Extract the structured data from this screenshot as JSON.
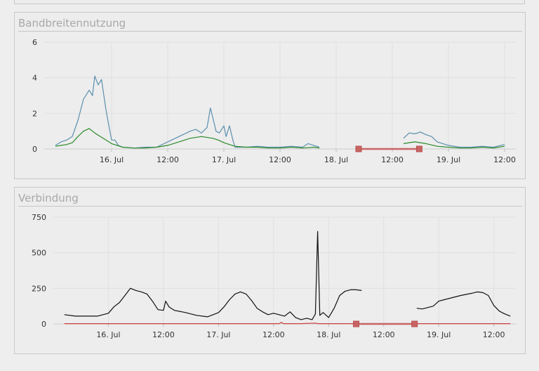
{
  "panels": [
    {
      "title": "Bandbreitennutzung",
      "chart_data": {
        "type": "line",
        "x_ticks": [
          "16. Jul",
          "12:00",
          "17. Jul",
          "12:00",
          "18. Jul",
          "12:00",
          "19. Jul",
          "12:00"
        ],
        "y_ticks": [
          "0",
          "2",
          "4",
          "6"
        ],
        "ylim": [
          0,
          6
        ],
        "grid": true,
        "series": [
          {
            "color": "#5b8fae",
            "segments": [
              [
                [
                  0,
                  0.2
                ],
                [
                  0.5,
                  0.4
                ],
                [
                  1,
                  0.5
                ],
                [
                  1.5,
                  0.7
                ],
                [
                  2,
                  1.6
                ],
                [
                  2.5,
                  2.8
                ],
                [
                  3,
                  3.3
                ],
                [
                  3.3,
                  3.0
                ],
                [
                  3.5,
                  4.1
                ],
                [
                  3.8,
                  3.6
                ],
                [
                  4.1,
                  3.9
                ],
                [
                  4.5,
                  2.2
                ],
                [
                  4.7,
                  1.5
                ],
                [
                  5,
                  0.5
                ],
                [
                  5.3,
                  0.5
                ],
                [
                  5.6,
                  0.2
                ],
                [
                  6,
                  0.1
                ],
                [
                  7,
                  0.05
                ],
                [
                  8,
                  0.1
                ],
                [
                  9,
                  0.1
                ],
                [
                  10,
                  0.4
                ],
                [
                  11,
                  0.7
                ],
                [
                  12,
                  1.0
                ],
                [
                  12.5,
                  1.1
                ],
                [
                  13,
                  0.9
                ],
                [
                  13.5,
                  1.2
                ],
                [
                  13.8,
                  2.3
                ],
                [
                  14,
                  1.8
                ],
                [
                  14.3,
                  1.0
                ],
                [
                  14.6,
                  0.9
                ],
                [
                  15,
                  1.3
                ],
                [
                  15.2,
                  0.7
                ],
                [
                  15.5,
                  1.3
                ],
                [
                  15.8,
                  0.5
                ],
                [
                  16,
                  0.1
                ],
                [
                  17,
                  0.1
                ],
                [
                  18,
                  0.15
                ],
                [
                  19,
                  0.1
                ],
                [
                  20,
                  0.1
                ],
                [
                  21,
                  0.15
                ],
                [
                  22,
                  0.1
                ],
                [
                  22.5,
                  0.3
                ],
                [
                  23,
                  0.2
                ],
                [
                  23.5,
                  0.1
                ]
              ],
              [
                [
                  31,
                  0.6
                ],
                [
                  31.5,
                  0.9
                ],
                [
                  32,
                  0.85
                ],
                [
                  32.5,
                  0.95
                ],
                [
                  33,
                  0.8
                ],
                [
                  33.5,
                  0.7
                ],
                [
                  34,
                  0.4
                ],
                [
                  35,
                  0.2
                ],
                [
                  36,
                  0.1
                ],
                [
                  37,
                  0.1
                ],
                [
                  38,
                  0.15
                ],
                [
                  39,
                  0.1
                ],
                [
                  40,
                  0.25
                ]
              ]
            ]
          },
          {
            "color": "#2a8a2a",
            "segments": [
              [
                [
                  0,
                  0.15
                ],
                [
                  0.5,
                  0.2
                ],
                [
                  1,
                  0.25
                ],
                [
                  1.5,
                  0.35
                ],
                [
                  2,
                  0.7
                ],
                [
                  2.5,
                  1.0
                ],
                [
                  3,
                  1.15
                ],
                [
                  3.5,
                  0.9
                ],
                [
                  4,
                  0.7
                ],
                [
                  4.5,
                  0.5
                ],
                [
                  5,
                  0.3
                ],
                [
                  6,
                  0.1
                ],
                [
                  7,
                  0.05
                ],
                [
                  8,
                  0.05
                ],
                [
                  9,
                  0.1
                ],
                [
                  10,
                  0.2
                ],
                [
                  11,
                  0.4
                ],
                [
                  12,
                  0.6
                ],
                [
                  13,
                  0.7
                ],
                [
                  14,
                  0.6
                ],
                [
                  14.5,
                  0.5
                ],
                [
                  15,
                  0.35
                ],
                [
                  15.5,
                  0.25
                ],
                [
                  16,
                  0.15
                ],
                [
                  17,
                  0.1
                ],
                [
                  18,
                  0.1
                ],
                [
                  19,
                  0.05
                ],
                [
                  20,
                  0.05
                ],
                [
                  21,
                  0.1
                ],
                [
                  22,
                  0.05
                ],
                [
                  23,
                  0.1
                ],
                [
                  23.5,
                  0.05
                ]
              ],
              [
                [
                  31,
                  0.3
                ],
                [
                  31.5,
                  0.35
                ],
                [
                  32,
                  0.4
                ],
                [
                  33,
                  0.3
                ],
                [
                  34,
                  0.15
                ],
                [
                  35,
                  0.1
                ],
                [
                  36,
                  0.05
                ],
                [
                  37,
                  0.05
                ],
                [
                  38,
                  0.1
                ],
                [
                  39,
                  0.05
                ],
                [
                  40,
                  0.15
                ]
              ]
            ]
          }
        ],
        "outages": [
          [
            27,
            32.4
          ]
        ],
        "outage_color": "#c96464"
      }
    },
    {
      "title": "Verbindung",
      "chart_data": {
        "type": "line",
        "x_ticks": [
          "16. Jul",
          "12:00",
          "17. Jul",
          "12:00",
          "18. Jul",
          "12:00",
          "19. Jul",
          "12:00"
        ],
        "y_ticks": [
          "0",
          "250",
          "500",
          "750"
        ],
        "ylim": [
          0,
          750
        ],
        "grid": true,
        "series": [
          {
            "color": "#111111",
            "segments": [
              [
                [
                  0,
                  65
                ],
                [
                  1,
                  55
                ],
                [
                  2,
                  55
                ],
                [
                  3,
                  55
                ],
                [
                  4,
                  75
                ],
                [
                  4.5,
                  120
                ],
                [
                  5,
                  150
                ],
                [
                  5.5,
                  200
                ],
                [
                  6,
                  250
                ],
                [
                  6.5,
                  235
                ],
                [
                  7,
                  225
                ],
                [
                  7.5,
                  210
                ],
                [
                  8,
                  160
                ],
                [
                  8.5,
                  100
                ],
                [
                  9,
                  95
                ],
                [
                  9.2,
                  160
                ],
                [
                  9.5,
                  120
                ],
                [
                  10,
                  95
                ],
                [
                  11,
                  80
                ],
                [
                  12,
                  60
                ],
                [
                  13,
                  50
                ],
                [
                  14,
                  80
                ],
                [
                  14.5,
                  120
                ],
                [
                  15,
                  170
                ],
                [
                  15.5,
                  210
                ],
                [
                  16,
                  225
                ],
                [
                  16.5,
                  210
                ],
                [
                  17,
                  165
                ],
                [
                  17.5,
                  110
                ],
                [
                  18,
                  85
                ],
                [
                  18.5,
                  65
                ],
                [
                  19,
                  75
                ],
                [
                  20,
                  55
                ],
                [
                  20.5,
                  85
                ],
                [
                  21,
                  45
                ],
                [
                  21.5,
                  30
                ],
                [
                  22,
                  40
                ],
                [
                  22.5,
                  30
                ],
                [
                  22.8,
                  70
                ],
                [
                  23,
                  650
                ],
                [
                  23.2,
                  60
                ],
                [
                  23.5,
                  80
                ],
                [
                  24,
                  45
                ],
                [
                  24.5,
                  110
                ],
                [
                  25,
                  200
                ],
                [
                  25.5,
                  230
                ],
                [
                  26,
                  240
                ],
                [
                  26.5,
                  240
                ],
                [
                  27,
                  235
                ]
              ],
              [
                [
                  32,
                  110
                ],
                [
                  32.5,
                  105
                ],
                [
                  33,
                  115
                ],
                [
                  33.5,
                  125
                ],
                [
                  34,
                  160
                ],
                [
                  34.5,
                  170
                ],
                [
                  35,
                  180
                ],
                [
                  36,
                  200
                ],
                [
                  37,
                  215
                ],
                [
                  37.5,
                  225
                ],
                [
                  38,
                  220
                ],
                [
                  38.5,
                  200
                ],
                [
                  39,
                  130
                ],
                [
                  39.5,
                  90
                ],
                [
                  40,
                  70
                ],
                [
                  40.5,
                  55
                ]
              ]
            ]
          },
          {
            "color": "#d04040",
            "segments": [
              [
                [
                  0,
                  2
                ],
                [
                  10,
                  2
                ],
                [
                  19.5,
                  2
                ],
                [
                  19.7,
                  12
                ],
                [
                  19.9,
                  2
                ],
                [
                  21.5,
                  2
                ],
                [
                  22.8,
                  6
                ],
                [
                  23,
                  2
                ],
                [
                  27,
                  2
                ]
              ],
              [
                [
                  32,
                  2
                ],
                [
                  40.5,
                  2
                ]
              ]
            ]
          }
        ],
        "outages": [
          [
            26.5,
            31.8
          ]
        ],
        "outage_color": "#c96464"
      }
    }
  ]
}
